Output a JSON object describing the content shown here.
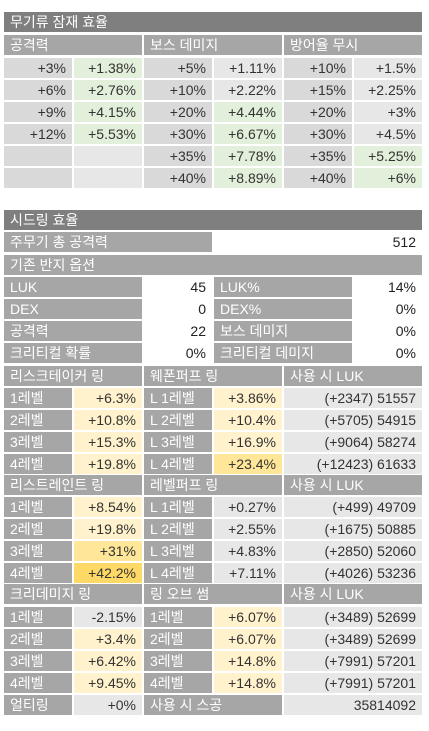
{
  "potential": {
    "title": "무기류 잠재 효율",
    "headers": [
      "공격력",
      "보스 데미지",
      "방어율 무시"
    ],
    "rows": [
      [
        "+3%",
        "+1.38%",
        "+5%",
        "+1.11%",
        "+10%",
        "+1.5%"
      ],
      [
        "+6%",
        "+2.76%",
        "+10%",
        "+2.22%",
        "+15%",
        "+2.25%"
      ],
      [
        "+9%",
        "+4.15%",
        "+20%",
        "+4.44%",
        "+20%",
        "+3%"
      ],
      [
        "+12%",
        "+5.53%",
        "+30%",
        "+6.67%",
        "+30%",
        "+4.5%"
      ],
      [
        "",
        "",
        "+35%",
        "+7.78%",
        "+35%",
        "+5.25%"
      ],
      [
        "",
        "",
        "+40%",
        "+8.89%",
        "+40%",
        "+6%"
      ]
    ]
  },
  "seed": {
    "title": "시드링 효율",
    "main_attack_label": "주무기 총 공격력",
    "main_attack_value": "512",
    "ring_options_label": "기존 반지 옵션",
    "options": [
      [
        "LUK",
        "45",
        "LUK%",
        "14%"
      ],
      [
        "DEX",
        "0",
        "DEX%",
        "0%"
      ],
      [
        "공격력",
        "22",
        "보스 데미지",
        "0%"
      ],
      [
        "크리티컬 확률",
        "0%",
        "크리티컬 데미지",
        "0%"
      ]
    ],
    "blocks": [
      {
        "headers": [
          "리스크테이커 링",
          "웨폰퍼프 링",
          "사용 시 LUK"
        ],
        "rows": [
          [
            "1레벨",
            "+6.3%",
            "L 1레벨",
            "+3.86%",
            "(+2347) 51557"
          ],
          [
            "2레벨",
            "+10.8%",
            "L 2레벨",
            "+10.4%",
            "(+5705) 54915"
          ],
          [
            "3레벨",
            "+15.3%",
            "L 3레벨",
            "+16.9%",
            "(+9064) 58274"
          ],
          [
            "4레벨",
            "+19.8%",
            "L 4레벨",
            "+23.4%",
            "(+12423) 61633"
          ]
        ]
      },
      {
        "headers": [
          "리스트레인트 링",
          "레벨퍼프 링",
          "사용 시 LUK"
        ],
        "rows": [
          [
            "1레벨",
            "+8.54%",
            "L 1레벨",
            "+0.27%",
            "(+499) 49709"
          ],
          [
            "2레벨",
            "+19.8%",
            "L 2레벨",
            "+2.55%",
            "(+1675) 50885"
          ],
          [
            "3레벨",
            "+31%",
            "L 3레벨",
            "+4.83%",
            "(+2850) 52060"
          ],
          [
            "4레벨",
            "+42.2%",
            "L 4레벨",
            "+7.11%",
            "(+4026) 53236"
          ]
        ]
      },
      {
        "headers": [
          "크리데미지 링",
          "링 오브 썸",
          "사용 시 LUK"
        ],
        "rows": [
          [
            "1레벨",
            "-2.15%",
            "1레벨",
            "+6.07%",
            "(+3489) 52699"
          ],
          [
            "2레벨",
            "+3.4%",
            "2레벨",
            "+6.07%",
            "(+3489) 52699"
          ],
          [
            "3레벨",
            "+6.42%",
            "3레벨",
            "+14.8%",
            "(+7991) 57201"
          ],
          [
            "4레벨",
            "+9.45%",
            "4레벨",
            "+14.8%",
            "(+7991) 57201"
          ]
        ]
      }
    ],
    "ulti_label": "얼티링",
    "ulti_value": "+0%",
    "scouter_label": "사용 시 스공",
    "scouter_value": "35814092"
  }
}
